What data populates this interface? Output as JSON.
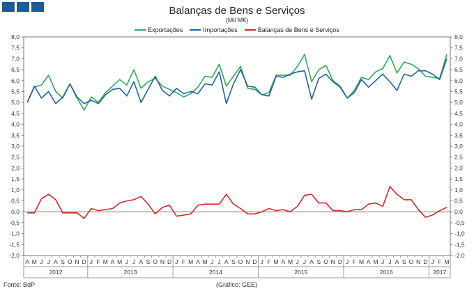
{
  "header": {
    "logo_squares": [
      "logo-square",
      "logo-square",
      "logo-square"
    ]
  },
  "footer": {
    "source": "Fonte: BdP",
    "credit": "(Gráfico: GEE)"
  },
  "chart_data": {
    "type": "line",
    "title": "Balanças de Bens e Serviços",
    "subtitle": "(Mil M€)",
    "ylim": [
      -2.0,
      8.0
    ],
    "y_ticks": [
      "-2,0",
      "-1,5",
      "-1,0",
      "-0,5",
      "0,0",
      "0,5",
      "1,0",
      "1,5",
      "2,0",
      "2,5",
      "3,0",
      "3,5",
      "4,0",
      "4,5",
      "5,0",
      "5,5",
      "6,0",
      "6,5",
      "7,0",
      "7,5",
      "8,0"
    ],
    "grid": false,
    "legend_position": "top",
    "month_labels": [
      "A",
      "M",
      "J",
      "J",
      "A",
      "S",
      "O",
      "N",
      "D",
      "J",
      "F",
      "M",
      "A",
      "M",
      "J",
      "J",
      "A",
      "S",
      "O",
      "N",
      "D",
      "J",
      "F",
      "M",
      "A",
      "M",
      "J",
      "J",
      "A",
      "S",
      "O",
      "N",
      "D",
      "J",
      "F",
      "M",
      "A",
      "M",
      "J",
      "J",
      "A",
      "S",
      "O",
      "N",
      "D",
      "J",
      "F",
      "M",
      "A",
      "M",
      "J",
      "J",
      "A",
      "S",
      "O",
      "N",
      "D",
      "J",
      "F",
      "M"
    ],
    "year_labels": [
      {
        "label": "2012",
        "start": 0,
        "end": 8
      },
      {
        "label": "2013",
        "start": 9,
        "end": 20
      },
      {
        "label": "2014",
        "start": 21,
        "end": 32
      },
      {
        "label": "2015",
        "start": 33,
        "end": 44
      },
      {
        "label": "2016",
        "start": 45,
        "end": 56
      },
      {
        "label": "2017",
        "start": 57,
        "end": 59
      }
    ],
    "series": [
      {
        "name": "Exportações",
        "color": "#2eaa55",
        "values": [
          5.0,
          5.7,
          5.8,
          6.25,
          5.5,
          5.2,
          5.85,
          5.2,
          4.65,
          5.25,
          5.0,
          5.45,
          5.75,
          6.05,
          5.8,
          6.5,
          5.65,
          5.95,
          6.1,
          5.75,
          5.6,
          5.45,
          5.25,
          5.4,
          5.7,
          6.2,
          6.15,
          6.75,
          5.75,
          6.2,
          6.65,
          5.65,
          5.6,
          5.35,
          5.45,
          6.25,
          6.25,
          6.25,
          6.65,
          7.2,
          5.95,
          6.5,
          6.7,
          6.0,
          5.75,
          5.2,
          5.55,
          6.15,
          6.05,
          6.4,
          6.55,
          7.15,
          6.35,
          6.85,
          6.75,
          6.55,
          6.2,
          6.15,
          6.1,
          7.2
        ]
      },
      {
        "name": "Importações",
        "color": "#1f62a8",
        "values": [
          5.0,
          5.75,
          5.2,
          5.5,
          4.95,
          5.25,
          5.85,
          5.25,
          4.95,
          5.1,
          4.95,
          5.35,
          5.6,
          5.65,
          5.3,
          5.95,
          5.0,
          5.6,
          6.2,
          5.55,
          5.3,
          5.65,
          5.4,
          5.5,
          5.4,
          5.85,
          5.8,
          6.4,
          4.95,
          5.85,
          6.5,
          5.75,
          5.7,
          5.35,
          5.3,
          6.2,
          6.15,
          6.3,
          6.4,
          6.45,
          5.15,
          6.1,
          6.3,
          5.95,
          5.7,
          5.2,
          5.45,
          6.05,
          5.7,
          6.0,
          6.3,
          5.95,
          5.55,
          6.3,
          6.2,
          6.45,
          6.45,
          6.3,
          6.05,
          7.0
        ]
      },
      {
        "name": "Balanças de Bens e Serviços",
        "color": "#d42a2a",
        "values": [
          -0.05,
          -0.05,
          0.6,
          0.8,
          0.55,
          -0.05,
          -0.05,
          -0.05,
          -0.3,
          0.15,
          0.05,
          0.1,
          0.15,
          0.4,
          0.5,
          0.55,
          0.7,
          0.35,
          -0.1,
          0.2,
          0.3,
          -0.2,
          -0.15,
          -0.1,
          0.3,
          0.35,
          0.35,
          0.35,
          0.8,
          0.35,
          0.15,
          -0.1,
          -0.1,
          0.0,
          0.15,
          0.05,
          0.1,
          0.0,
          0.25,
          0.75,
          0.8,
          0.4,
          0.4,
          0.05,
          0.05,
          0.0,
          0.1,
          0.1,
          0.35,
          0.4,
          0.25,
          1.15,
          0.8,
          0.55,
          0.55,
          0.1,
          -0.25,
          -0.15,
          0.05,
          0.2
        ]
      }
    ]
  }
}
